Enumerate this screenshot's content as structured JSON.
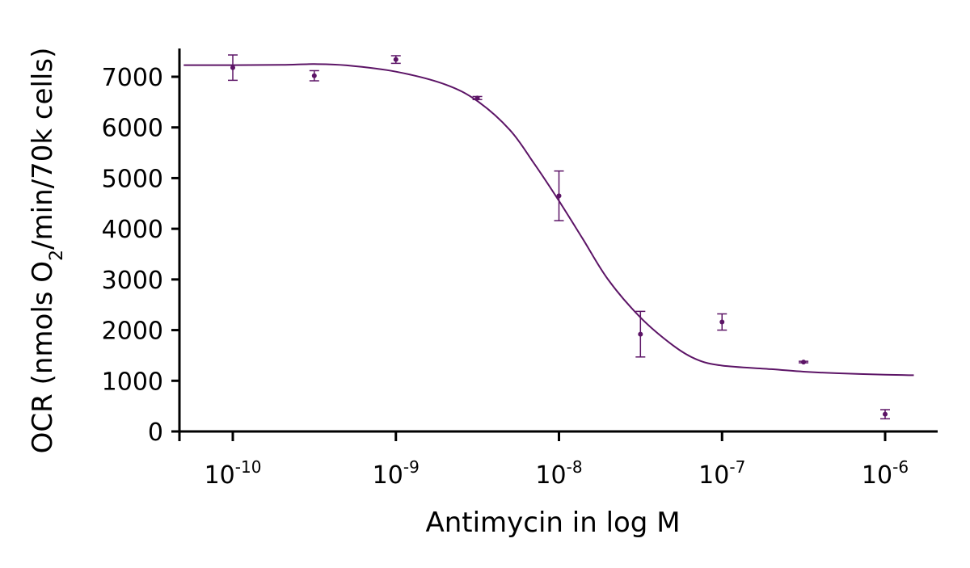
{
  "chart_data": {
    "type": "scatter",
    "xlabel": "Antimycin in log M",
    "ylabel": {
      "prefix": "OCR (nmols O",
      "subscript": "2",
      "suffix": "/min/70k cells)"
    },
    "x_scale": "log",
    "xlim": [
      5e-11,
      1.5e-06
    ],
    "ylim": [
      0,
      7500
    ],
    "y_ticks": [
      0,
      1000,
      2000,
      3000,
      4000,
      5000,
      6000,
      7000
    ],
    "x_ticks": [
      {
        "value": 1e-10,
        "base": "10",
        "exp": "-10"
      },
      {
        "value": 1e-09,
        "base": "10",
        "exp": "-9"
      },
      {
        "value": 1e-08,
        "base": "10",
        "exp": "-8"
      },
      {
        "value": 1e-07,
        "base": "10",
        "exp": "-7"
      },
      {
        "value": 1e-06,
        "base": "10",
        "exp": "-6"
      }
    ],
    "color": "#5c1466",
    "grid": false,
    "legend": "none",
    "points": [
      {
        "x": 1e-10,
        "y": 7180,
        "err": 250
      },
      {
        "x": 3.16e-10,
        "y": 7020,
        "err": 100
      },
      {
        "x": 1e-09,
        "y": 7340,
        "err": 75
      },
      {
        "x": 3.16e-09,
        "y": 6580,
        "err": 30
      },
      {
        "x": 1e-08,
        "y": 4650,
        "err": 490
      },
      {
        "x": 3.16e-08,
        "y": 1920,
        "err": 450
      },
      {
        "x": 1e-07,
        "y": 2160,
        "err": 160
      },
      {
        "x": 3.16e-07,
        "y": 1370,
        "err": 15
      },
      {
        "x": 1e-06,
        "y": 340,
        "err": 90
      }
    ],
    "fit_curve": {
      "x": [
        5e-11,
        1e-10,
        2e-10,
        3.16e-10,
        5e-10,
        1e-09,
        2e-09,
        3.16e-09,
        5e-09,
        7e-09,
        1e-08,
        1.4e-08,
        2e-08,
        3.16e-08,
        5e-08,
        7e-08,
        1e-07,
        2e-07,
        3.16e-07,
        5e-07,
        1e-06,
        1.5e-06
      ],
      "y": [
        7230,
        7230,
        7235,
        7250,
        7225,
        7100,
        6850,
        6520,
        5950,
        5300,
        4550,
        3800,
        3000,
        2250,
        1700,
        1420,
        1300,
        1230,
        1180,
        1150,
        1120,
        1110
      ]
    }
  }
}
